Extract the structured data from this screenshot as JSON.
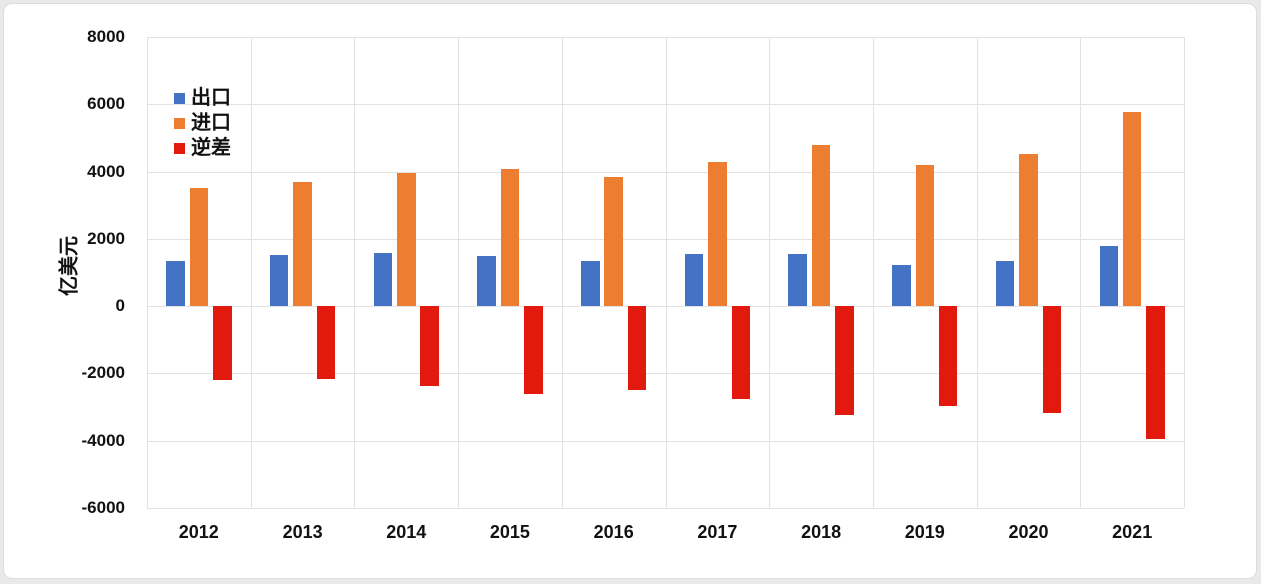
{
  "chart_data": {
    "type": "bar",
    "title": "",
    "ylabel": "亿美元",
    "categories": [
      "2012",
      "2013",
      "2014",
      "2015",
      "2016",
      "2017",
      "2018",
      "2019",
      "2020",
      "2021"
    ],
    "series": [
      {
        "key": "export",
        "name": "出口",
        "color": "#4472C4",
        "values": [
          1328.9,
          1525.8,
          1590.6,
          1487.0,
          1344.7,
          1539.4,
          1551.0,
          1227.1,
          1349.1,
          1795.3
        ]
      },
      {
        "key": "import",
        "name": "进口",
        "color": "#ED7D31",
        "values": [
          3517.9,
          3684.3,
          3960.8,
          4092.0,
          3851.1,
          4297.8,
          4784.1,
          4186.7,
          4518.1,
          5761.1
        ]
      },
      {
        "key": "deficit",
        "name": "逆差",
        "color": "#E2190D",
        "values": [
          -2189.0,
          -2158.5,
          -2370.2,
          -2605.0,
          -2506.4,
          -2758.4,
          -3233.1,
          -2959.6,
          -3169.0,
          -3965.8
        ]
      }
    ],
    "ylim": [
      -6000,
      8000
    ],
    "ytick_step": 2000,
    "ytick_labels": [
      "8000",
      "6000",
      "4000",
      "2000",
      "0",
      "-2000",
      "-4000",
      "-6000"
    ],
    "grid": "both",
    "legend_position": "top-left-inside"
  },
  "colors": {
    "background": "#e9e9e9",
    "card": "#ffffff",
    "gridline": "#e2e2e2",
    "text": "#111111"
  }
}
